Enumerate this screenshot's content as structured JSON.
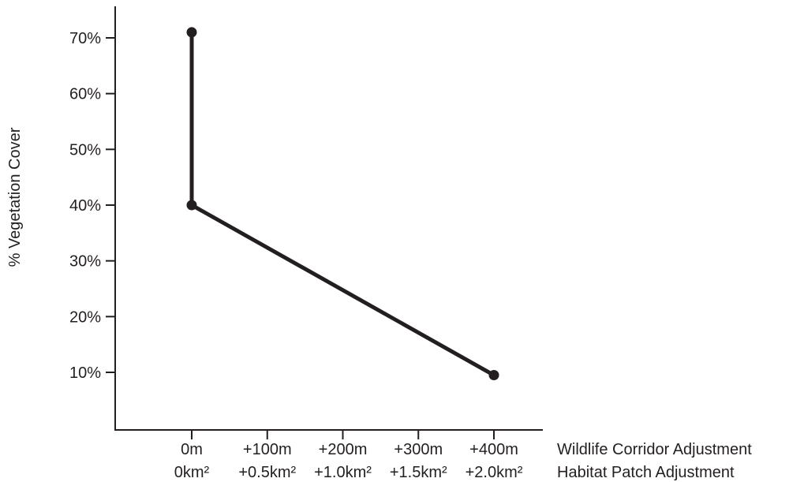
{
  "chart_data": {
    "type": "line",
    "ylabel": "% Vegetation Cover",
    "xlabel_lines": [
      "Wildlife Corridor Adjustment",
      "Habitat Patch Adjustment"
    ],
    "x_ticks": [
      {
        "value": 0,
        "line1": "0m",
        "line2": "0km²"
      },
      {
        "value": 100,
        "line1": "+100m",
        "line2": "+0.5km²"
      },
      {
        "value": 200,
        "line1": "+200m",
        "line2": "+1.0km²"
      },
      {
        "value": 300,
        "line1": "+300m",
        "line2": "+1.5km²"
      },
      {
        "value": 400,
        "line1": "+400m",
        "line2": "+2.0km²"
      }
    ],
    "y_ticks": [
      {
        "value": 10,
        "label": "10%"
      },
      {
        "value": 20,
        "label": "20%"
      },
      {
        "value": 30,
        "label": "30%"
      },
      {
        "value": 40,
        "label": "40%"
      },
      {
        "value": 50,
        "label": "50%"
      },
      {
        "value": 60,
        "label": "60%"
      },
      {
        "value": 70,
        "label": "70%"
      }
    ],
    "xlim": [
      -100,
      450
    ],
    "ylim": [
      0,
      76
    ],
    "grid": false,
    "series": [
      {
        "points": [
          {
            "x": 0,
            "y": 71
          },
          {
            "x": 0,
            "y": 40
          },
          {
            "x": 400,
            "y": 9.5
          }
        ]
      }
    ],
    "line_color": "#231f20"
  }
}
